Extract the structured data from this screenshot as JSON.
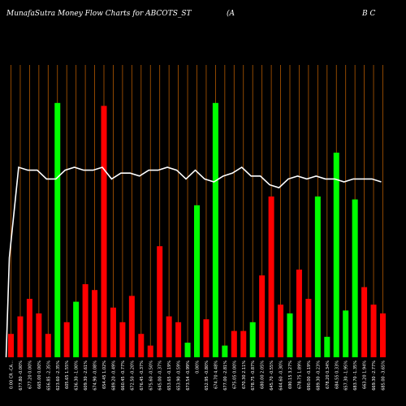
{
  "header": {
    "title_left": "MunafaSutra  Money Flow  Charts for ABCOTS_ST",
    "title_mid": "(A",
    "title_right": "B C"
  },
  "colors": {
    "background": "#000000",
    "grid": "#b35900",
    "up": "#00ff00",
    "down": "#ff0000",
    "line": "#ffffff"
  },
  "chart_data": {
    "type": "bar",
    "grid": true,
    "series": [
      {
        "values": [
          8,
          14,
          20,
          15,
          8,
          87,
          12,
          19,
          25,
          23,
          86,
          17,
          12,
          21,
          8,
          4,
          38,
          14,
          12,
          5,
          52,
          13,
          87,
          4,
          9,
          9,
          12,
          28,
          55,
          18,
          15,
          30,
          20,
          55,
          7,
          70,
          16,
          54,
          24,
          18,
          15
        ],
        "directions": [
          "down",
          "down",
          "down",
          "down",
          "down",
          "up",
          "down",
          "up",
          "down",
          "down",
          "down",
          "down",
          "down",
          "down",
          "down",
          "down",
          "down",
          "down",
          "down",
          "up",
          "up",
          "down",
          "up",
          "up",
          "down",
          "down",
          "up",
          "down",
          "down",
          "down",
          "up",
          "down",
          "down",
          "up",
          "up",
          "up",
          "up",
          "up",
          "down",
          "down",
          "down"
        ]
      },
      {
        "values": [
          34,
          65,
          64,
          64,
          61,
          61,
          64,
          65,
          64,
          64,
          65,
          61,
          63,
          63,
          62,
          64,
          64,
          65,
          64,
          61,
          64,
          61,
          60,
          62,
          63,
          65,
          62,
          62,
          59,
          58,
          61,
          62,
          61,
          62,
          61,
          61,
          60,
          61,
          61,
          61,
          60
        ]
      }
    ],
    "x_tick_labels": [
      "0.00 CR -CA…",
      "677.80 -0.00%",
      "677.20 0.00%",
      "665.00 0.00%",
      "656.85 -2.35%",
      "623.60 -2.35%",
      "605.65 1.55%",
      "636.30 -1.00%",
      "609.30 -2.61%",
      "674.90 -0.08%",
      "654.45 1.02%",
      "689.20 -0.49%",
      "660.45 -0.77%",
      "672.50 -0.20%",
      "676.45 -0.37%",
      "675.60 -0.50%",
      "645.00 -0.37%",
      "653.65 -0.19%",
      "653.90 -0.59%",
      "673.54 -0.99%",
      "0.00%",
      "652.95 -0.80%",
      "674.70 4.48%",
      "677.00 -2.81%",
      "675.05 0.00%",
      "670.30 2.11%",
      "678.75 -0.87%",
      "680.00 2.05%",
      "645.70 -0.55%",
      "644.60 -0.30%",
      "690.15 3.27%",
      "678.75 1.89%",
      "690.00 -0.19%",
      "689.30 -0.23%",
      "678.20 0.34%",
      "684.55 0.33%",
      "657.30 -1.95%",
      "683.70 -1.35%",
      "663.20 1.94%",
      "669.30 -2.77%",
      "685.00 -3.65%"
    ]
  }
}
